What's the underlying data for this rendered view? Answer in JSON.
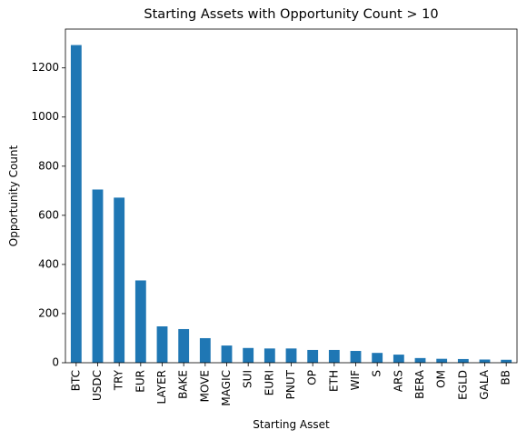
{
  "chart_data": {
    "type": "bar",
    "title": "Starting Assets with Opportunity Count > 10",
    "xlabel": "Starting Asset",
    "ylabel": "Opportunity Count",
    "categories": [
      "BTC",
      "USDC",
      "TRY",
      "EUR",
      "LAYER",
      "BAKE",
      "MOVE",
      "MAGIC",
      "SUI",
      "EURI",
      "PNUT",
      "OP",
      "ETH",
      "WIF",
      "S",
      "ARS",
      "BERA",
      "OM",
      "EGLD",
      "GALA",
      "BB"
    ],
    "values": [
      1293,
      705,
      672,
      335,
      148,
      137,
      100,
      70,
      60,
      58,
      58,
      52,
      52,
      48,
      40,
      33,
      19,
      16,
      15,
      13,
      12
    ],
    "ylim": [
      0,
      1358
    ],
    "yticks": [
      0,
      200,
      400,
      600,
      800,
      1000,
      1200
    ],
    "bar_color": "#1f77b4",
    "grid": false,
    "legend": "none"
  }
}
